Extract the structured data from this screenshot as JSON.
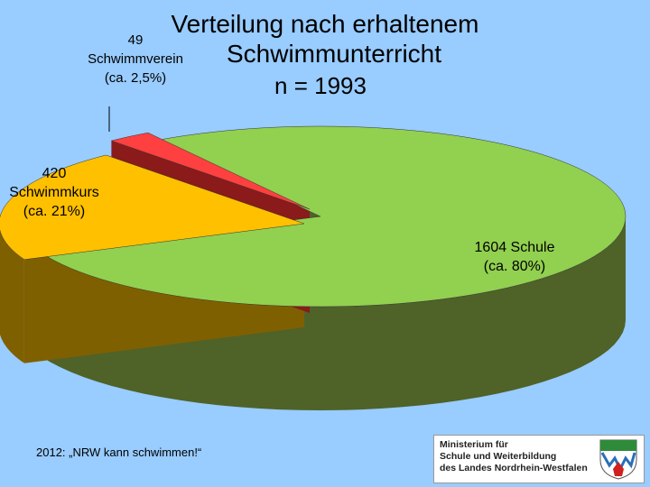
{
  "title": {
    "line1": "Verteilung nach erhaltenem",
    "line2": "Schwimmunterricht",
    "line3": "n = 1993"
  },
  "chart_data": {
    "type": "pie",
    "style": "3d-exploded",
    "total_label": "n = 1993",
    "slices": [
      {
        "name": "Schule",
        "value": 1604,
        "percent_text": "(ca. 80%)",
        "count_text": "1604 Schule",
        "color": "#92d050",
        "side_color": "#4f6228"
      },
      {
        "name": "Schwimmkurs",
        "value": 420,
        "percent_text": "(ca. 21%)",
        "count_text": "420",
        "name_text": "Schwimmkurs",
        "color": "#ffc000",
        "side_color": "#7f6000"
      },
      {
        "name": "Schwimmverein",
        "value": 49,
        "percent_text": "(ca. 2,5%)",
        "count_text": "49",
        "name_text": "Schwimmverein",
        "color": "#ff4040",
        "side_color": "#8b1a1a"
      }
    ],
    "legend": "none"
  },
  "labels": {
    "schule_line1": "1604 Schule",
    "schule_line2": "(ca. 80%)",
    "kurs_line1": "420",
    "kurs_line2": "Schwimmkurs",
    "kurs_line3": "(ca. 21%)",
    "verein_line1": "49",
    "verein_line2": "Schwimmverein",
    "verein_line3": "(ca. 2,5%)"
  },
  "footer": {
    "caption": "2012: „NRW kann schwimmen!“",
    "ministry_line1": "Ministerium für",
    "ministry_line2": "Schule und Weiterbildung",
    "ministry_line3": "des Landes Nordrhein-Westfalen"
  },
  "colors": {
    "background": "#99ccff"
  }
}
